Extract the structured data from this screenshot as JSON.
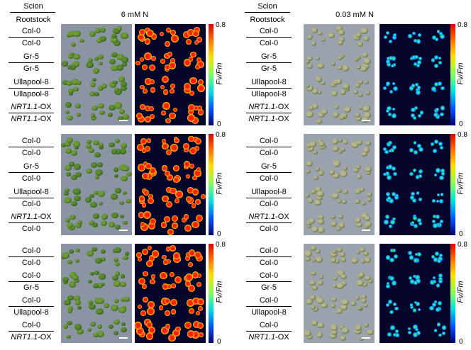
{
  "header": {
    "scion": "Scion",
    "rootstock": "Rootstock",
    "left_condition": "6 mM N",
    "right_condition": "0.03 mM N"
  },
  "colorbar": {
    "max": "0.8",
    "min": "0",
    "label": "Fv/Fm"
  },
  "panels": [
    {
      "id": "left-top",
      "rows": [
        {
          "scion": "Col-0",
          "rootstock": "Col-0"
        },
        {
          "scion": "Gr-5",
          "rootstock": "Gr-5"
        },
        {
          "scion": "Ullapool-8",
          "rootstock": "Ullapool-8"
        },
        {
          "scion_italic": "NRT1.1",
          "scion_suffix": "-OX",
          "rootstock_italic": "NRT1.1",
          "rootstock_suffix": "-OX"
        }
      ]
    },
    {
      "id": "left-middle",
      "rows": [
        {
          "scion": "Col-0",
          "rootstock": "Col-0"
        },
        {
          "scion": "Gr-5",
          "rootstock": "Col-0"
        },
        {
          "scion": "Ullapool-8",
          "rootstock": "Col-0"
        },
        {
          "scion_italic": "NRT1.1",
          "scion_suffix": "-OX",
          "rootstock": "Col-0"
        }
      ]
    },
    {
      "id": "left-bottom",
      "rows": [
        {
          "scion": "Col-0",
          "rootstock": "Col-0"
        },
        {
          "scion": "Col-0",
          "rootstock": "Gr-5"
        },
        {
          "scion": "Col-0",
          "rootstock": "Ullapool-8"
        },
        {
          "scion": "Col-0",
          "rootstock_italic": "NRT1.1",
          "rootstock_suffix": "-OX"
        }
      ]
    },
    {
      "id": "right-top",
      "rows": [
        {
          "scion": "Col-0",
          "rootstock": "Col-0"
        },
        {
          "scion": "Gr-5",
          "rootstock": "Gr-5"
        },
        {
          "scion": "Ullapool-8",
          "rootstock": "Ullapool-8"
        },
        {
          "scion_italic": "NRT1.1",
          "scion_suffix": "-OX",
          "rootstock_italic": "NRT1.1",
          "rootstock_suffix": "-OX"
        }
      ]
    },
    {
      "id": "right-middle",
      "rows": [
        {
          "scion": "Col-0",
          "rootstock": "Col-0"
        },
        {
          "scion": "Gr-5",
          "rootstock": "Col-0"
        },
        {
          "scion": "Ullapool-8",
          "rootstock": "Col-0"
        },
        {
          "scion_italic": "NRT1.1",
          "scion_suffix": "-OX",
          "rootstock": "Col-0"
        }
      ]
    },
    {
      "id": "right-bottom",
      "rows": [
        {
          "scion": "Col-0",
          "rootstock": "Col-0"
        },
        {
          "scion": "Col-0",
          "rootstock": "Gr-5"
        },
        {
          "scion": "Col-0",
          "rootstock": "Ullapool-8"
        },
        {
          "scion": "Col-0",
          "rootstock_italic": "NRT1.1",
          "rootstock_suffix": "-OX"
        }
      ]
    }
  ]
}
